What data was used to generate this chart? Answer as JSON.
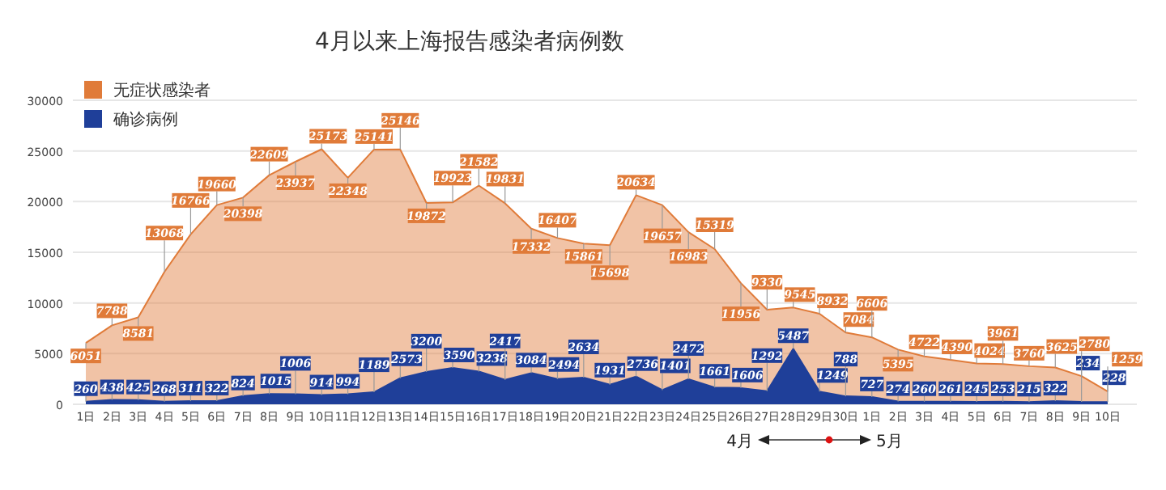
{
  "chart_data": {
    "type": "area",
    "title": "4月以来上海报告感染者病例数",
    "categories": [
      "1日",
      "2日",
      "3日",
      "4日",
      "5日",
      "6日",
      "7日",
      "8日",
      "9日",
      "10日",
      "11日",
      "12日",
      "13日",
      "14日",
      "15日",
      "16日",
      "17日",
      "18日",
      "19日",
      "20日",
      "21日",
      "22日",
      "23日",
      "24日",
      "25日",
      "26日",
      "27日",
      "28日",
      "29日",
      "30日",
      "1日",
      "2日",
      "3日",
      "4日",
      "5日",
      "6日",
      "7日",
      "8日",
      "9日",
      "10日"
    ],
    "series": [
      {
        "name": "无症状感染者",
        "color": "#e07b39",
        "values": [
          6051,
          7788,
          8581,
          13068,
          16766,
          19660,
          20398,
          22609,
          23937,
          25173,
          22348,
          25141,
          25146,
          19872,
          19923,
          21582,
          19831,
          17332,
          16407,
          15861,
          15698,
          20634,
          19657,
          16983,
          15319,
          11956,
          9330,
          9545,
          8932,
          7084,
          6606,
          5395,
          4722,
          4390,
          4024,
          3961,
          3760,
          3625,
          2780,
          1259
        ]
      },
      {
        "name": "确诊病例",
        "color": "#1f3f99",
        "values": [
          260,
          438,
          425,
          268,
          311,
          322,
          824,
          1015,
          1006,
          914,
          994,
          1189,
          2573,
          3200,
          3590,
          3238,
          2417,
          3084,
          2494,
          2634,
          1931,
          2736,
          1401,
          2472,
          1661,
          1606,
          1292,
          5487,
          1249,
          788,
          727,
          274,
          260,
          261,
          245,
          253,
          215,
          322,
          234,
          228
        ]
      }
    ],
    "ylim": [
      0,
      30000
    ],
    "yticks": [
      0,
      5000,
      10000,
      15000,
      20000,
      25000,
      30000
    ],
    "grid": "y",
    "legend": "top left",
    "data_labels": true,
    "annotations": [
      "4月",
      "5月"
    ]
  }
}
